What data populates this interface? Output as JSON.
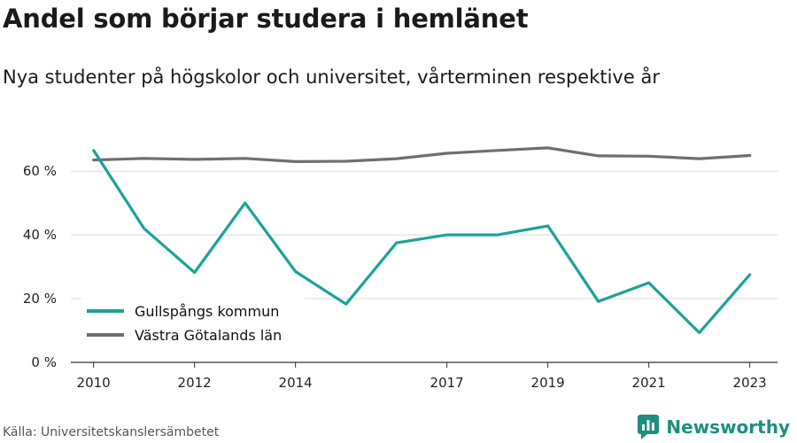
{
  "header": {
    "title": "Andel som börjar studera i hemlänet",
    "subtitle": "Nya studenter på högskolor och universitet, vårterminen respektive år"
  },
  "footer": {
    "source": "Källa: Universitetskanslersämbetet",
    "brand": "Newsworthy",
    "brand_icon": "newsworthy-logo-icon",
    "brand_color": "#1d8f80"
  },
  "chart_data": {
    "type": "line",
    "title": "Andel som börjar studera i hemlänet",
    "subtitle": "Nya studenter på högskolor och universitet, vårterminen respektive år",
    "x": [
      2010,
      2011,
      2012,
      2013,
      2014,
      2015,
      2016,
      2017,
      2018,
      2019,
      2020,
      2021,
      2022,
      2023
    ],
    "x_tick_labels": [
      "2010",
      "2012",
      "2014",
      "2017",
      "2019",
      "2021",
      "2023"
    ],
    "x_ticks": [
      2010,
      2012,
      2014,
      2017,
      2019,
      2021,
      2023
    ],
    "y_ticks": [
      0,
      20,
      40,
      60
    ],
    "y_tick_labels": [
      "0 %",
      "20 %",
      "40 %",
      "60 %"
    ],
    "ylim": [
      0,
      72
    ],
    "grid": true,
    "legend_position": "bottom-left",
    "series": [
      {
        "name": "Gullspångs kommun",
        "color": "#1aa398",
        "values": [
          66.5,
          42,
          28.2,
          50,
          28.5,
          18.3,
          37.5,
          40,
          40,
          42.8,
          19.1,
          25,
          9.3,
          27.5
        ]
      },
      {
        "name": "Västra Götalands län",
        "color": "#6e6e73",
        "values": [
          63.5,
          64,
          63.7,
          64,
          63,
          63.1,
          63.9,
          65.6,
          66.5,
          67.3,
          64.8,
          64.7,
          63.9,
          64.9
        ]
      }
    ]
  }
}
